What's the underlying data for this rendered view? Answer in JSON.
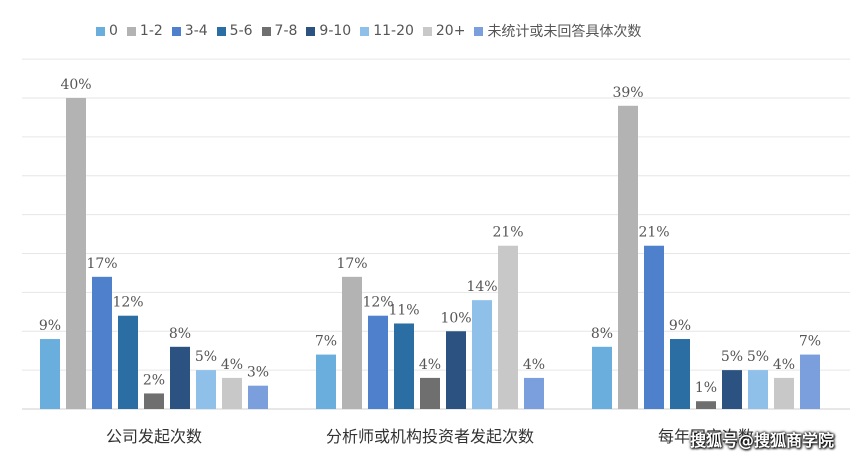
{
  "chart_data": {
    "type": "bar",
    "title": "",
    "xlabel": "",
    "ylabel": "",
    "ylim": [
      0,
      40
    ],
    "grid": true,
    "legend_position": "top",
    "categories": [
      "公司发起次数",
      "分析师或机构投资者发起次数",
      "每年固定次数"
    ],
    "series": [
      {
        "name": "0",
        "color": "#6aaedd",
        "values": [
          9,
          7,
          8
        ],
        "labels": [
          "9%",
          "7%",
          "8%"
        ]
      },
      {
        "name": "1-2",
        "color": "#b3b3b3",
        "values": [
          40,
          17,
          39
        ],
        "labels": [
          "40%",
          "17%",
          "39%"
        ]
      },
      {
        "name": "3-4",
        "color": "#4f80cc",
        "values": [
          17,
          12,
          21
        ],
        "labels": [
          "17%",
          "12%",
          "21%"
        ]
      },
      {
        "name": "5-6",
        "color": "#2b6ea3",
        "values": [
          12,
          11,
          9
        ],
        "labels": [
          "12%",
          "11%",
          "9%"
        ]
      },
      {
        "name": "7-8",
        "color": "#6f6f6f",
        "values": [
          2,
          4,
          1
        ],
        "labels": [
          "2%",
          "4%",
          "1%"
        ]
      },
      {
        "name": "9-10",
        "color": "#2c5282",
        "values": [
          8,
          10,
          5
        ],
        "labels": [
          "8%",
          "10%",
          "5%"
        ]
      },
      {
        "name": "11-20",
        "color": "#8fc0ea",
        "values": [
          5,
          14,
          5
        ],
        "labels": [
          "5%",
          "14%",
          "5%"
        ]
      },
      {
        "name": "20+",
        "color": "#c8c8c8",
        "values": [
          4,
          21,
          4
        ],
        "labels": [
          "4%",
          "21%",
          "4%"
        ]
      },
      {
        "name": "未统计或未回答具体次数",
        "color": "#7b9fdc",
        "values": [
          3,
          4,
          7
        ],
        "labels": [
          "3%",
          "4%",
          "7%"
        ]
      }
    ]
  },
  "watermark": "搜狐号@搜狐商学院"
}
